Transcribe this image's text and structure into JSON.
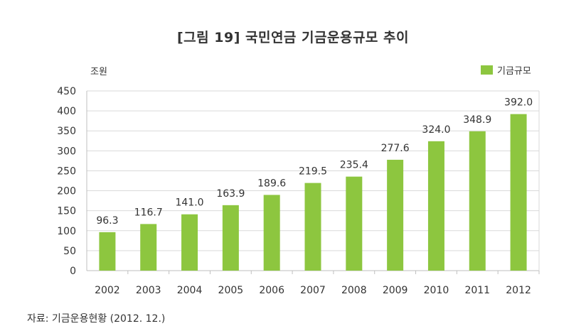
{
  "title": "[그림 19] 국민연금 기금운용규모 추이",
  "unit_label": "조원",
  "source_note": "자료: 기금운용현황 (2012. 12.)",
  "colors": {
    "bar": "#8dc63f",
    "grid": "#d9d9d9",
    "text": "#333333"
  },
  "chart_data": {
    "type": "bar",
    "title": "[그림 19] 국민연금 기금운용규모 추이",
    "xlabel": "",
    "ylabel": "조원",
    "categories": [
      "2002",
      "2003",
      "2004",
      "2005",
      "2006",
      "2007",
      "2008",
      "2009",
      "2010",
      "2011",
      "2012"
    ],
    "series": [
      {
        "name": "기금규모",
        "values": [
          96.3,
          116.7,
          141.0,
          163.9,
          189.6,
          219.5,
          235.4,
          277.6,
          324.0,
          348.9,
          392.0
        ],
        "labels": [
          "96.3",
          "116.7",
          "141.0",
          "163.9",
          "189.6",
          "219.5",
          "235.4",
          "277.6",
          "324.0",
          "348.9",
          "392.0"
        ]
      }
    ],
    "yticks": [
      0,
      50,
      100,
      150,
      200,
      250,
      300,
      350,
      400,
      450
    ],
    "ylim": [
      0,
      450
    ],
    "grid": true,
    "legend_position": "top-right"
  }
}
